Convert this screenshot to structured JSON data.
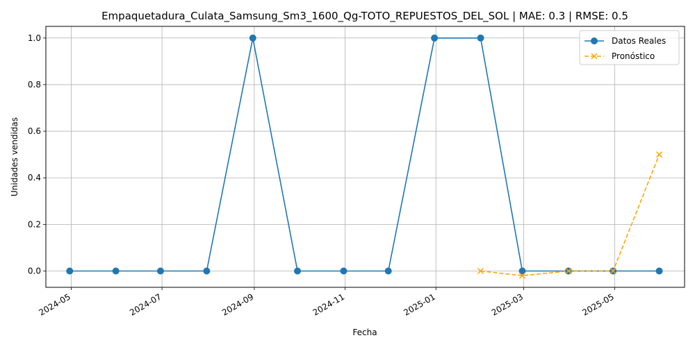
{
  "chart_data": {
    "type": "line",
    "title": "Empaquetadura_Culata_Samsung_Sm3_1600_Qg-TOTO_REPUESTOS_DEL_SOL | MAE: 0.3 | RMSE: 0.5",
    "xlabel": "Fecha",
    "ylabel": "Unidades vendidas",
    "xlim": [
      "2024-04-14",
      "2025-06-17"
    ],
    "ylim": [
      -0.07,
      1.05
    ],
    "x_ticks": [
      "2024-05",
      "2024-07",
      "2024-09",
      "2024-11",
      "2025-01",
      "2025-03",
      "2025-05"
    ],
    "y_ticks": [
      "0.0",
      "0.2",
      "0.4",
      "0.6",
      "0.8",
      "1.0"
    ],
    "grid": true,
    "legend_position": "top-right",
    "series": [
      {
        "name": "Datos Reales",
        "color": "#1f77b4",
        "style": "solid",
        "marker": "circle",
        "x": [
          "2024-04-30",
          "2024-05-31",
          "2024-06-30",
          "2024-07-31",
          "2024-08-31",
          "2024-09-30",
          "2024-10-31",
          "2024-11-30",
          "2024-12-31",
          "2025-01-31",
          "2025-02-28",
          "2025-03-31",
          "2025-04-30",
          "2025-05-31"
        ],
        "values": [
          0,
          0,
          0,
          0,
          1,
          0,
          0,
          0,
          1,
          1,
          0,
          0,
          0,
          0
        ]
      },
      {
        "name": "Pronóstico",
        "color": "#ffa500",
        "style": "dashed",
        "marker": "x",
        "x": [
          "2025-01-31",
          "2025-02-28",
          "2025-03-31",
          "2025-04-30",
          "2025-05-31"
        ],
        "values": [
          0.0,
          -0.02,
          0.0,
          0.0,
          0.5
        ]
      }
    ]
  }
}
